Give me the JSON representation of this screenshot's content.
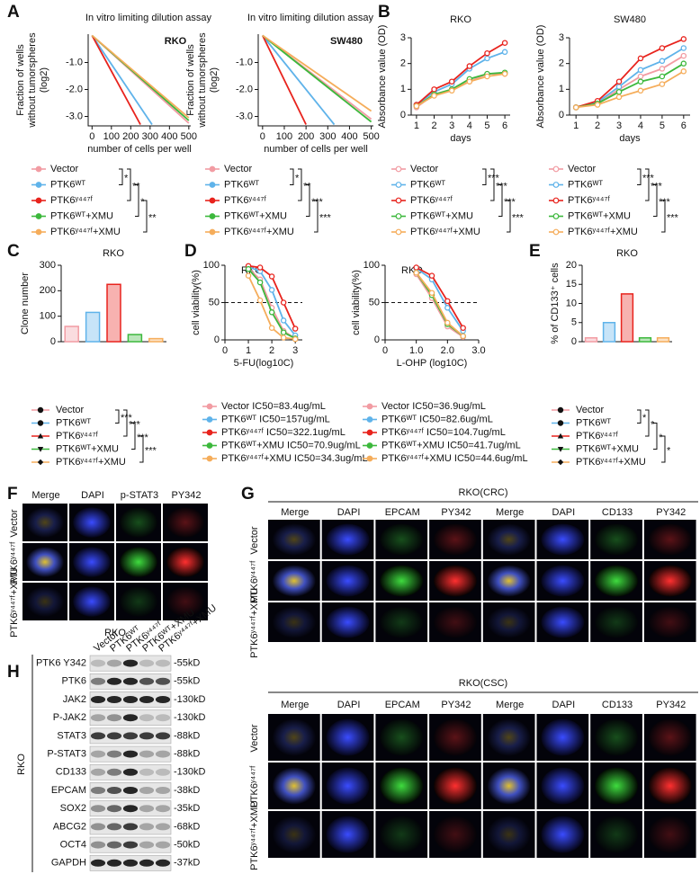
{
  "panel_labels": [
    "A",
    "B",
    "C",
    "D",
    "E",
    "F",
    "G",
    "H"
  ],
  "chart_data": [
    {
      "type": "line",
      "title": "In vitro limiting dilution assay",
      "annotation": "RKO",
      "xlabel": "number of cells per well",
      "ylabel": [
        "Fraction of wells",
        "without tumorspheres",
        "(log2)"
      ],
      "xlim": [
        -20,
        510
      ],
      "xticks": [
        0,
        100,
        200,
        300,
        400,
        500
      ],
      "ylim": [
        -3.35,
        0.05
      ],
      "yticks": [
        {
          "value": -1,
          "label": "-1.0"
        },
        {
          "value": -2,
          "label": "-2.0"
        },
        {
          "value": -3,
          "label": "-3.0"
        }
      ],
      "series": [
        {
          "name": "Vector",
          "color": "#f29ca3",
          "x": [
            0,
            500
          ],
          "values": [
            0,
            -3.25
          ]
        },
        {
          "name": "PTK6ᵂᵀ",
          "color": "#5fb3ea",
          "x": [
            0,
            310
          ],
          "values": [
            0,
            -3.3
          ]
        },
        {
          "name": "PTK6ʸ⁴⁴⁷ᶠ",
          "color": "#e8231d",
          "x": [
            0,
            250
          ],
          "values": [
            0,
            -3.3
          ]
        },
        {
          "name": "PTK6ᵂᵀ+XMU",
          "color": "#3cb83c",
          "x": [
            0,
            500
          ],
          "values": [
            0,
            -3.15
          ]
        },
        {
          "name": "PTK6ʸ⁴⁴⁷ᶠ+XMU",
          "color": "#f5ad5b",
          "x": [
            0,
            500
          ],
          "values": [
            0,
            -3.05
          ]
        }
      ],
      "significance": [
        "*",
        "**",
        "*",
        "**"
      ]
    },
    {
      "type": "line",
      "title": "In vitro limiting dilution assay",
      "annotation": "SW480",
      "xlabel": "number of cells per well",
      "ylabel": [
        "Fraction of wells",
        "without tumorspheres",
        "(log2)"
      ],
      "xlim": [
        -20,
        510
      ],
      "xticks": [
        0,
        100,
        200,
        300,
        400,
        500
      ],
      "ylim": [
        -3.35,
        0.05
      ],
      "yticks": [
        {
          "value": -1,
          "label": "-1.0"
        },
        {
          "value": -2,
          "label": "-2.0"
        },
        {
          "value": -3,
          "label": "-3.0"
        }
      ],
      "series": [
        {
          "name": "Vector",
          "color": "#f29ca3",
          "x": [
            0,
            500
          ],
          "values": [
            0,
            -3.1
          ]
        },
        {
          "name": "PTK6ᵂᵀ",
          "color": "#5fb3ea",
          "x": [
            0,
            330
          ],
          "values": [
            0,
            -3.3
          ]
        },
        {
          "name": "PTK6ʸ⁴⁴⁷ᶠ",
          "color": "#e8231d",
          "x": [
            0,
            200
          ],
          "values": [
            0,
            -3.3
          ]
        },
        {
          "name": "PTK6ᵂᵀ+XMU",
          "color": "#3cb83c",
          "x": [
            0,
            500
          ],
          "values": [
            0,
            -3.2
          ]
        },
        {
          "name": "PTK6ʸ⁴⁴⁷ᶠ+XMU",
          "color": "#f5ad5b",
          "x": [
            0,
            500
          ],
          "values": [
            0,
            -2.8
          ]
        }
      ],
      "significance": [
        "*",
        "**",
        "***",
        "***"
      ]
    },
    {
      "type": "line",
      "title": "RKO",
      "xlabel": "days",
      "ylabel": [
        "Absorbance value (OD)"
      ],
      "x": [
        1,
        2,
        3,
        4,
        5,
        6
      ],
      "xlim": [
        0.7,
        6.3
      ],
      "xticks": [
        1,
        2,
        3,
        4,
        5,
        6
      ],
      "ylim": [
        0,
        3
      ],
      "yticks": [
        0,
        1,
        2,
        3
      ],
      "markers": true,
      "series": [
        {
          "name": "Vector",
          "color": "#f29ca3",
          "values": [
            0.3,
            0.8,
            1.0,
            1.3,
            1.6,
            1.6
          ]
        },
        {
          "name": "PTK6ᵂᵀ",
          "color": "#5fb3ea",
          "values": [
            0.4,
            0.9,
            1.2,
            1.8,
            2.2,
            2.45
          ]
        },
        {
          "name": "PTK6ʸ⁴⁴⁷ᶠ",
          "color": "#e8231d",
          "values": [
            0.4,
            1.0,
            1.3,
            1.9,
            2.4,
            2.8
          ]
        },
        {
          "name": "PTK6ᵂᵀ+XMU",
          "color": "#3cb83c",
          "values": [
            0.35,
            0.8,
            1.0,
            1.4,
            1.6,
            1.65
          ]
        },
        {
          "name": "PTK6ʸ⁴⁴⁷ᶠ+XMU",
          "color": "#f5ad5b",
          "values": [
            0.35,
            0.75,
            0.95,
            1.3,
            1.5,
            1.6
          ]
        }
      ],
      "significance": [
        "***",
        "***",
        "***",
        "***"
      ]
    },
    {
      "type": "line",
      "title": "SW480",
      "xlabel": "days",
      "ylabel": [
        "Absorbance value (OD)"
      ],
      "x": [
        1,
        2,
        3,
        4,
        5,
        6
      ],
      "xlim": [
        0.7,
        6.3
      ],
      "xticks": [
        1,
        2,
        3,
        4,
        5,
        6
      ],
      "ylim": [
        0,
        3
      ],
      "yticks": [
        0,
        1,
        2,
        3
      ],
      "markers": true,
      "series": [
        {
          "name": "Vector",
          "color": "#f29ca3",
          "values": [
            0.3,
            0.45,
            1.0,
            1.5,
            1.8,
            2.3
          ]
        },
        {
          "name": "PTK6ᵂᵀ",
          "color": "#5fb3ea",
          "values": [
            0.3,
            0.5,
            1.1,
            1.75,
            2.1,
            2.6
          ]
        },
        {
          "name": "PTK6ʸ⁴⁴⁷ᶠ",
          "color": "#e8231d",
          "values": [
            0.3,
            0.55,
            1.3,
            2.2,
            2.6,
            2.95
          ]
        },
        {
          "name": "PTK6ᵂᵀ+XMU",
          "color": "#3cb83c",
          "values": [
            0.3,
            0.45,
            0.9,
            1.3,
            1.5,
            2.0
          ]
        },
        {
          "name": "PTK6ʸ⁴⁴⁷ᶠ+XMU",
          "color": "#f5ad5b",
          "values": [
            0.3,
            0.4,
            0.7,
            0.95,
            1.2,
            1.7
          ]
        }
      ],
      "significance": [
        "***",
        "***",
        "***",
        "***"
      ]
    },
    {
      "type": "bar",
      "title": "RKO",
      "ylabel": [
        "Clone number"
      ],
      "categories": [
        "Vector",
        "PTK6ᵂᵀ",
        "PTK6ʸ⁴⁴⁷ᶠ",
        "PTK6ᵂᵀ+XMU",
        "PTK6ʸ⁴⁴⁷ᶠ+XMU"
      ],
      "values": [
        60,
        115,
        225,
        28,
        12
      ],
      "colors": [
        "#f29ca3",
        "#5fb3ea",
        "#e8231d",
        "#3cb83c",
        "#f5ad5b"
      ],
      "markers": [
        "circle",
        "circle",
        "triangle",
        "triangle-down",
        "diamond"
      ],
      "ylim": [
        0,
        300
      ],
      "yticks": [
        0,
        100,
        200,
        300
      ],
      "significance": [
        "***",
        "***",
        "***",
        "***"
      ]
    },
    {
      "type": "line",
      "title": "RKO",
      "xlabel": "5-FU(log10C)",
      "ylabel": [
        "cell viability(%)"
      ],
      "xlim": [
        0,
        3.3
      ],
      "xticks": [
        0,
        1,
        2,
        3
      ],
      "ylim": [
        0,
        100
      ],
      "yticks": [
        0,
        50,
        100
      ],
      "reference_line": 50,
      "markers": true,
      "series": [
        {
          "name": "Vector IC50=83.4ug/mL",
          "color": "#f29ca3",
          "x": [
            1.0,
            1.5,
            2.0,
            2.5,
            3.0
          ],
          "values": [
            96,
            81,
            43,
            12,
            2
          ]
        },
        {
          "name": "PTK6ᵂᵀ IC50=157ug/mL",
          "color": "#5fb3ea",
          "x": [
            1.0,
            1.5,
            2.0,
            2.5,
            3.0
          ],
          "values": [
            98,
            92,
            67,
            26,
            6
          ]
        },
        {
          "name": "PTK6ʸ⁴⁴⁷ᶠ IC50=322.1ug/mL",
          "color": "#e8231d",
          "x": [
            1.0,
            1.5,
            2.0,
            2.5,
            3.0
          ],
          "values": [
            99,
            97,
            85,
            50,
            15
          ]
        },
        {
          "name": "PTK6ᵂᵀ+XMU IC50=70.9ug/mL",
          "color": "#3cb83c",
          "x": [
            1.0,
            1.5,
            2.0,
            2.5,
            3.0
          ],
          "values": [
            95,
            77,
            37,
            10,
            2
          ]
        },
        {
          "name": "PTK6ʸ⁴⁴⁷ᶠ+XMU IC50=34.3ug/mL",
          "color": "#f5ad5b",
          "x": [
            1.0,
            1.5,
            2.0,
            2.5,
            3.0
          ],
          "values": [
            86,
            53,
            16,
            3,
            1
          ]
        }
      ]
    },
    {
      "type": "line",
      "title": "RKO",
      "xlabel": "L-OHP (log10C)",
      "ylabel": [
        "cell viability(%)"
      ],
      "xlim": [
        0,
        3
      ],
      "xticks": [
        0,
        {
          "value": 1,
          "label": "1.0"
        },
        {
          "value": 2,
          "label": "2.0"
        },
        {
          "value": 3,
          "label": "3.0"
        }
      ],
      "ylim": [
        0,
        100
      ],
      "yticks": [
        0,
        50,
        100
      ],
      "reference_line": 50,
      "markers": true,
      "series": [
        {
          "name": "Vector IC50=36.9ug/mL",
          "color": "#f29ca3",
          "x": [
            1.0,
            1.5,
            2.0,
            2.5
          ],
          "values": [
            88,
            56,
            18,
            4
          ]
        },
        {
          "name": "PTK6ᵂᵀ IC50=82.6ug/mL",
          "color": "#5fb3ea",
          "x": [
            1.0,
            1.5,
            2.0,
            2.5
          ],
          "values": [
            96,
            81,
            43,
            12
          ]
        },
        {
          "name": "PTK6ʸ⁴⁴⁷ᶠ IC50=104.7ug/mL",
          "color": "#e8231d",
          "x": [
            1.0,
            1.5,
            2.0,
            2.5
          ],
          "values": [
            97,
            86,
            52,
            16
          ]
        },
        {
          "name": "PTK6ᵂᵀ+XMU IC50=41.7ug/mL",
          "color": "#3cb83c",
          "x": [
            1.0,
            1.5,
            2.0,
            2.5
          ],
          "values": [
            90,
            60,
            21,
            5
          ]
        },
        {
          "name": "PTK6ʸ⁴⁴⁷ᶠ+XMU IC50=44.6ug/mL",
          "color": "#f5ad5b",
          "x": [
            1.0,
            1.5,
            2.0,
            2.5
          ],
          "values": [
            90,
            63,
            23,
            5
          ]
        }
      ]
    },
    {
      "type": "bar",
      "title": "RKO",
      "ylabel": [
        "% of CD133⁺ cells"
      ],
      "categories": [
        "Vector",
        "PTK6ᵂᵀ",
        "PTK6ʸ⁴⁴⁷ᶠ",
        "PTK6ᵂᵀ+XMU",
        "PTK6ʸ⁴⁴⁷ᶠ+XMU"
      ],
      "values": [
        1,
        5,
        12.5,
        1,
        1
      ],
      "colors": [
        "#f29ca3",
        "#5fb3ea",
        "#e8231d",
        "#3cb83c",
        "#f5ad5b"
      ],
      "markers": [
        "circle",
        "circle",
        "triangle",
        "triangle-down",
        "diamond"
      ],
      "ylim": [
        0,
        20
      ],
      "yticks": [
        0,
        5,
        10,
        15,
        20
      ],
      "significance": [
        "*",
        "*",
        "*",
        "*"
      ]
    }
  ],
  "panel_f": {
    "columns": [
      "Merge",
      "DAPI",
      "p-STAT3",
      "PY342"
    ],
    "rows": [
      "Vector",
      "PTK6ʸ⁴⁴⁷ᶠ",
      "PTK6ʸ⁴⁴⁷ᶠ+XMU"
    ],
    "caption": "RKO"
  },
  "panel_g": {
    "crc": {
      "title": "RKO(CRC)",
      "columns": [
        "Merge",
        "DAPI",
        "EPCAM",
        "PY342",
        "Merge",
        "DAPI",
        "CD133",
        "PY342"
      ],
      "rows": [
        "Vector",
        "PTK6ʸ⁴⁴⁷ᶠ",
        "PTK6ʸ⁴⁴⁷ᶠ+XMU"
      ]
    },
    "csc": {
      "title": "RKO(CSC)",
      "columns": [
        "Merge",
        "DAPI",
        "EPCAM",
        "PY342",
        "Merge",
        "DAPI",
        "CD133",
        "PY342"
      ],
      "rows": [
        "Vector",
        "PTK6ʸ⁴⁴⁷ᶠ",
        "PTK6ʸ⁴⁴⁷ᶠ+XMU"
      ]
    }
  },
  "panel_h": {
    "cell_line": "RKO",
    "lanes": [
      "Vector",
      "PTK6ᵂᵀ",
      "PTK6ʸ⁴⁴⁷ᶠ",
      "PTK6ᵂᵀ+XMU",
      "PTK6ʸ⁴⁴⁷ᶠ+XMU"
    ],
    "proteins": [
      "PTK6 Y342",
      "PTK6",
      "JAK2",
      "P-JAK2",
      "STAT3",
      "P-STAT3",
      "CD133",
      "EPCAM",
      "SOX2",
      "ABCG2",
      "OCT4",
      "GAPDH"
    ],
    "sizes": [
      "-55kD",
      "-55kD",
      "-130kD",
      "-130kD",
      "-88kD",
      "-88kD",
      "-130kD",
      "-38kD",
      "-35kD",
      "-68kD",
      "-50kD",
      "-37kD"
    ]
  }
}
